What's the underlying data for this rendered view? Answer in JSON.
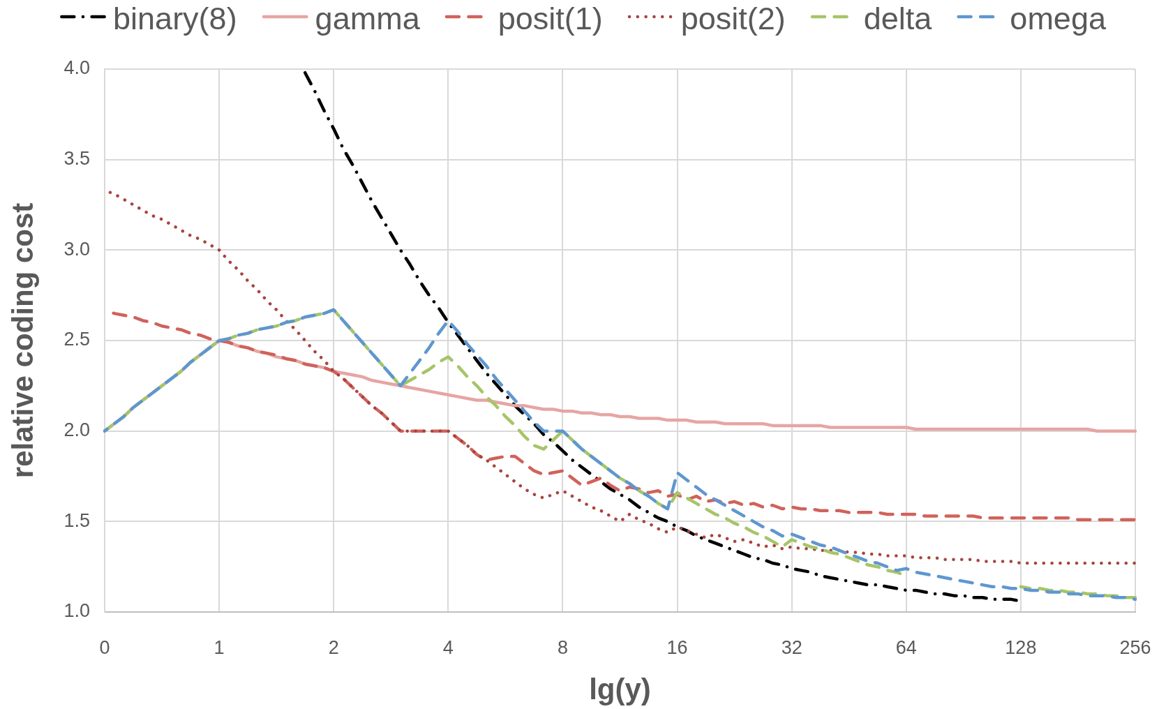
{
  "chart_data": {
    "type": "line",
    "xlabel": "lg(y)",
    "ylabel": "relative coding cost",
    "categories": [
      "0",
      null,
      null,
      null,
      null,
      null,
      null,
      null,
      null,
      null,
      null,
      null,
      "1",
      null,
      null,
      null,
      null,
      null,
      null,
      null,
      null,
      null,
      null,
      null,
      "2",
      null,
      null,
      null,
      null,
      null,
      null,
      null,
      null,
      null,
      null,
      null,
      "4",
      null,
      null,
      null,
      null,
      null,
      null,
      null,
      null,
      null,
      null,
      null,
      "8",
      null,
      null,
      null,
      null,
      null,
      null,
      null,
      null,
      null,
      null,
      null,
      "16",
      null,
      null,
      null,
      null,
      null,
      null,
      null,
      null,
      null,
      null,
      null,
      "32",
      null,
      null,
      null,
      null,
      null,
      null,
      null,
      null,
      null,
      null,
      null,
      "64",
      null,
      null,
      null,
      null,
      null,
      null,
      null,
      null,
      null,
      null,
      null,
      "128",
      null,
      null,
      null,
      null,
      null,
      null,
      null,
      null,
      null,
      null,
      null,
      "256"
    ],
    "ylim": [
      1,
      4
    ],
    "yticks": [
      {
        "value": 1,
        "label": "1.0"
      },
      1.5,
      {
        "value": 2,
        "label": "2.0"
      },
      2.5,
      {
        "value": 3,
        "label": "3.0"
      },
      3.5,
      {
        "value": 4,
        "label": "4.0"
      }
    ],
    "grid": true,
    "legend": "top",
    "marker": "none",
    "series": [
      {
        "name": "binary(8)",
        "color": "#000000",
        "line_style": "dashdot",
        "values": [
          null,
          null,
          null,
          null,
          null,
          null,
          null,
          null,
          null,
          null,
          null,
          null,
          null,
          null,
          null,
          null,
          null,
          null,
          null,
          null,
          null,
          3.98,
          3.88,
          3.77,
          3.67,
          3.56,
          3.47,
          3.37,
          3.27,
          3.18,
          3.09,
          3.0,
          2.92,
          2.83,
          2.75,
          2.68,
          2.6,
          2.53,
          2.46,
          2.39,
          2.32,
          2.26,
          2.2,
          2.14,
          2.09,
          2.04,
          1.98,
          1.94,
          1.89,
          1.84,
          1.8,
          1.76,
          1.72,
          1.68,
          1.65,
          1.62,
          1.58,
          1.55,
          1.52,
          1.5,
          1.47,
          1.45,
          1.42,
          1.4,
          1.38,
          1.36,
          1.34,
          1.32,
          1.3,
          1.29,
          1.27,
          1.26,
          1.24,
          1.23,
          1.22,
          1.2,
          1.19,
          1.18,
          1.17,
          1.16,
          1.15,
          1.15,
          1.14,
          1.13,
          1.12,
          1.12,
          1.11,
          1.1,
          1.1,
          1.09,
          1.09,
          1.08,
          1.08,
          1.07,
          1.07,
          1.07,
          1.06,
          null,
          null,
          null,
          null,
          null,
          null,
          null,
          null,
          null,
          null,
          null,
          null
        ]
      },
      {
        "name": "gamma",
        "color": "#e6a5a3",
        "line_style": "solid",
        "values": [
          2.0,
          2.04,
          2.08,
          2.13,
          2.17,
          2.21,
          2.25,
          2.29,
          2.33,
          2.38,
          2.42,
          2.46,
          2.5,
          2.49,
          2.47,
          2.46,
          2.44,
          2.43,
          2.41,
          2.4,
          2.39,
          2.37,
          2.36,
          2.35,
          2.33,
          2.32,
          2.31,
          2.3,
          2.28,
          2.27,
          2.26,
          2.25,
          2.24,
          2.23,
          2.22,
          2.21,
          2.2,
          2.19,
          2.18,
          2.17,
          2.17,
          2.16,
          2.15,
          2.14,
          2.14,
          2.13,
          2.12,
          2.12,
          2.11,
          2.11,
          2.1,
          2.1,
          2.09,
          2.09,
          2.08,
          2.08,
          2.07,
          2.07,
          2.07,
          2.06,
          2.06,
          2.06,
          2.05,
          2.05,
          2.05,
          2.04,
          2.04,
          2.04,
          2.04,
          2.04,
          2.03,
          2.03,
          2.03,
          2.03,
          2.03,
          2.03,
          2.02,
          2.02,
          2.02,
          2.02,
          2.02,
          2.02,
          2.02,
          2.02,
          2.02,
          2.01,
          2.01,
          2.01,
          2.01,
          2.01,
          2.01,
          2.01,
          2.01,
          2.01,
          2.01,
          2.01,
          2.01,
          2.01,
          2.01,
          2.01,
          2.01,
          2.01,
          2.01,
          2.01,
          2.0,
          2.0,
          2.0,
          2.0,
          2.0
        ]
      },
      {
        "name": "posit(1)",
        "color": "#d0625a",
        "line_style": "dashed",
        "values": [
          2.67,
          2.65,
          2.64,
          2.63,
          2.61,
          2.6,
          2.58,
          2.57,
          2.56,
          2.54,
          2.53,
          2.51,
          2.5,
          2.49,
          2.47,
          2.46,
          2.44,
          2.43,
          2.42,
          2.4,
          2.39,
          2.37,
          2.36,
          2.35,
          2.33,
          2.29,
          2.24,
          2.19,
          2.14,
          2.1,
          2.05,
          2.0,
          2.0,
          2.0,
          2.0,
          2.0,
          2.0,
          1.96,
          1.92,
          1.87,
          1.84,
          1.85,
          1.86,
          1.86,
          1.82,
          1.78,
          1.76,
          1.77,
          1.78,
          1.74,
          1.7,
          1.72,
          1.74,
          1.7,
          1.67,
          1.69,
          1.68,
          1.66,
          1.67,
          1.64,
          1.65,
          1.62,
          1.64,
          1.61,
          1.62,
          1.6,
          1.61,
          1.59,
          1.6,
          1.58,
          1.59,
          1.57,
          1.58,
          1.57,
          1.57,
          1.56,
          1.56,
          1.56,
          1.55,
          1.55,
          1.55,
          1.55,
          1.54,
          1.54,
          1.54,
          1.54,
          1.53,
          1.53,
          1.53,
          1.53,
          1.53,
          1.53,
          1.52,
          1.52,
          1.52,
          1.52,
          1.52,
          1.52,
          1.52,
          1.52,
          1.52,
          1.52,
          1.51,
          1.51,
          1.51,
          1.51,
          1.51,
          1.51,
          1.51
        ]
      },
      {
        "name": "posit(2)",
        "color": "#a8443f",
        "line_style": "dotted",
        "values": [
          3.33,
          3.31,
          3.28,
          3.25,
          3.22,
          3.19,
          3.17,
          3.14,
          3.11,
          3.08,
          3.06,
          3.03,
          3.0,
          2.94,
          2.89,
          2.83,
          2.78,
          2.72,
          2.67,
          2.61,
          2.56,
          2.5,
          2.44,
          2.39,
          2.33,
          2.29,
          2.24,
          2.19,
          2.14,
          2.1,
          2.05,
          2.0,
          2.0,
          2.0,
          2.0,
          2.0,
          2.0,
          1.96,
          1.92,
          1.87,
          1.84,
          1.8,
          1.76,
          1.72,
          1.68,
          1.65,
          1.63,
          1.65,
          1.67,
          1.64,
          1.61,
          1.58,
          1.56,
          1.53,
          1.5,
          1.54,
          1.51,
          1.49,
          1.46,
          1.44,
          1.47,
          1.45,
          1.43,
          1.41,
          1.43,
          1.41,
          1.39,
          1.4,
          1.38,
          1.36,
          1.37,
          1.35,
          1.36,
          1.35,
          1.35,
          1.34,
          1.34,
          1.34,
          1.33,
          1.33,
          1.32,
          1.32,
          1.31,
          1.31,
          1.31,
          1.3,
          1.3,
          1.3,
          1.29,
          1.29,
          1.29,
          1.29,
          1.28,
          1.28,
          1.28,
          1.28,
          1.27,
          1.27,
          1.27,
          1.27,
          1.27,
          1.27,
          1.27,
          1.27,
          1.27,
          1.27,
          1.27,
          1.27,
          1.27
        ]
      },
      {
        "name": "delta",
        "color": "#a6c567",
        "line_style": "dashed",
        "values": [
          2.0,
          2.04,
          2.08,
          2.13,
          2.17,
          2.21,
          2.25,
          2.29,
          2.33,
          2.38,
          2.42,
          2.46,
          2.5,
          2.51,
          2.53,
          2.54,
          2.56,
          2.57,
          2.58,
          2.6,
          2.61,
          2.63,
          2.64,
          2.65,
          2.67,
          2.61,
          2.55,
          2.49,
          2.43,
          2.37,
          2.31,
          2.25,
          2.28,
          2.31,
          2.34,
          2.38,
          2.41,
          2.36,
          2.3,
          2.25,
          2.19,
          2.14,
          2.08,
          2.03,
          1.97,
          1.92,
          1.9,
          1.95,
          2.0,
          1.95,
          1.9,
          1.86,
          1.82,
          1.78,
          1.74,
          1.71,
          1.67,
          1.64,
          1.6,
          1.57,
          1.66,
          1.63,
          1.6,
          1.57,
          1.54,
          1.52,
          1.49,
          1.47,
          1.44,
          1.42,
          1.39,
          1.36,
          1.4,
          1.38,
          1.36,
          1.35,
          1.33,
          1.32,
          1.3,
          1.28,
          1.26,
          1.25,
          1.23,
          1.22,
          1.2,
          null,
          null,
          null,
          null,
          null,
          null,
          null,
          null,
          null,
          null,
          null,
          1.14,
          1.13,
          1.13,
          1.12,
          1.12,
          1.11,
          1.11,
          1.1,
          1.1,
          1.09,
          1.09,
          1.08,
          1.08
        ]
      },
      {
        "name": "omega",
        "color": "#5f97cf",
        "line_style": "dashed",
        "values": [
          2.0,
          2.04,
          2.08,
          2.13,
          2.17,
          2.21,
          2.25,
          2.29,
          2.33,
          2.38,
          2.42,
          2.46,
          2.5,
          2.51,
          2.53,
          2.54,
          2.56,
          2.57,
          2.58,
          2.6,
          2.61,
          2.63,
          2.64,
          2.65,
          2.67,
          2.61,
          2.55,
          2.49,
          2.43,
          2.37,
          2.31,
          2.25,
          2.32,
          2.39,
          2.46,
          2.54,
          2.61,
          2.55,
          2.48,
          2.42,
          2.36,
          2.29,
          2.23,
          2.17,
          2.11,
          2.05,
          2.0,
          2.0,
          2.0,
          1.95,
          1.9,
          1.86,
          1.82,
          1.78,
          1.74,
          1.71,
          1.67,
          1.64,
          1.6,
          1.57,
          1.77,
          1.73,
          1.69,
          1.65,
          1.62,
          1.59,
          1.56,
          1.53,
          1.5,
          1.47,
          1.45,
          1.42,
          1.43,
          1.41,
          1.39,
          1.37,
          1.36,
          1.34,
          1.32,
          1.3,
          1.28,
          1.27,
          1.25,
          1.23,
          1.24,
          1.22,
          1.21,
          1.2,
          1.19,
          1.18,
          1.17,
          1.16,
          1.15,
          1.14,
          1.14,
          1.13,
          1.13,
          1.12,
          1.12,
          1.11,
          1.11,
          1.1,
          1.1,
          1.09,
          1.09,
          1.09,
          1.08,
          1.08,
          1.07
        ]
      }
    ]
  }
}
